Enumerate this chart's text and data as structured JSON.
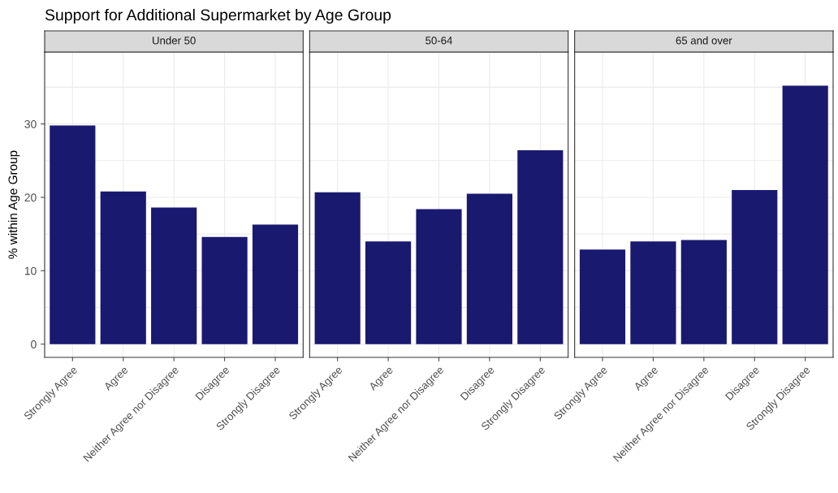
{
  "chart_data": [
    {
      "type": "bar",
      "title": "Support for Additional Supermarket by Age Group",
      "subtitle": "Under 50",
      "ylabel": "% within Age Group",
      "categories": [
        "Strongly Agree",
        "Agree",
        "Neither Agree nor Disagree",
        "Disagree",
        "Strongly Disagree"
      ],
      "values": [
        29.8,
        20.8,
        18.6,
        14.6,
        16.3
      ],
      "color": "#191970",
      "ylim": [
        -1.8,
        39.8
      ],
      "yticks": [
        0,
        {
          "value": 5,
          "label": null
        },
        10,
        {
          "value": 15,
          "label": null
        },
        20,
        {
          "value": 25,
          "label": null
        },
        30,
        {
          "value": 35,
          "label": null
        }
      ],
      "grid": true
    },
    {
      "type": "bar",
      "subtitle": "50-64",
      "categories": [
        "Strongly Agree",
        "Agree",
        "Neither Agree nor Disagree",
        "Disagree",
        "Strongly Disagree"
      ],
      "values": [
        20.7,
        14.0,
        18.4,
        20.5,
        26.4
      ],
      "color": "#191970",
      "ylim": [
        -1.8,
        39.8
      ],
      "yticks": [
        0,
        {
          "value": 5,
          "label": null
        },
        10,
        {
          "value": 15,
          "label": null
        },
        20,
        {
          "value": 25,
          "label": null
        },
        30,
        {
          "value": 35,
          "label": null
        }
      ],
      "grid": true,
      "tick_labels": "x"
    },
    {
      "type": "bar",
      "subtitle": "65 and over",
      "categories": [
        "Strongly Agree",
        "Agree",
        "Neither Agree nor Disagree",
        "Disagree",
        "Strongly Disagree"
      ],
      "values": [
        12.9,
        14.0,
        14.2,
        21.0,
        35.2
      ],
      "color": "#191970",
      "ylim": [
        -1.8,
        39.8
      ],
      "yticks": [
        0,
        {
          "value": 5,
          "label": null
        },
        10,
        {
          "value": 15,
          "label": null
        },
        20,
        {
          "value": 25,
          "label": null
        },
        30,
        {
          "value": 35,
          "label": null
        }
      ],
      "grid": true,
      "tick_labels": "x"
    }
  ]
}
